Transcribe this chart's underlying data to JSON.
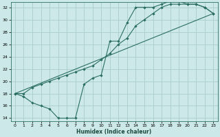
{
  "xlabel": "Humidex (Indice chaleur)",
  "bg_color": "#cce8e8",
  "grid_color": "#aacccc",
  "line_color": "#2a6e62",
  "xlim": [
    -0.5,
    23.5
  ],
  "ylim": [
    13.5,
    32.8
  ],
  "xticks": [
    0,
    1,
    2,
    3,
    4,
    5,
    6,
    7,
    8,
    9,
    10,
    11,
    12,
    13,
    14,
    15,
    16,
    17,
    18,
    19,
    20,
    21,
    22,
    23
  ],
  "yticks": [
    14,
    16,
    18,
    20,
    22,
    24,
    26,
    28,
    30,
    32
  ],
  "line1_x": [
    0,
    1,
    2,
    3,
    4,
    5,
    6,
    7,
    8,
    9,
    10,
    11,
    12,
    13,
    14,
    15,
    16,
    17,
    18,
    19,
    20,
    21,
    22,
    23
  ],
  "line1_y": [
    18,
    17.5,
    16.5,
    16,
    15.5,
    14,
    14,
    14,
    19.5,
    20.5,
    21,
    26.5,
    26.5,
    29.5,
    32,
    32,
    32,
    32.5,
    33,
    33,
    32.5,
    32.5,
    32,
    31
  ],
  "line2_x": [
    0,
    1,
    2,
    3,
    4,
    5,
    6,
    7,
    8,
    9,
    10,
    11,
    12,
    13,
    14,
    15,
    16,
    17,
    18,
    19,
    20,
    21,
    22,
    23
  ],
  "line2_y": [
    18,
    18,
    19,
    19.5,
    20,
    20.5,
    21,
    21.5,
    22,
    22.5,
    23.5,
    24.5,
    26,
    27,
    29,
    30,
    31,
    32,
    32.5,
    32.5,
    32.5,
    32.5,
    32,
    31
  ],
  "line3_x": [
    0,
    23
  ],
  "line3_y": [
    18,
    31
  ]
}
